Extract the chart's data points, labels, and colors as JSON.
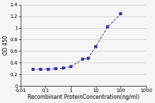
{
  "x": [
    0.03125,
    0.0625,
    0.125,
    0.25,
    0.5,
    1.0,
    3.0,
    5.0,
    10.0,
    30.0,
    100.0
  ],
  "y": [
    0.285,
    0.29,
    0.29,
    0.295,
    0.305,
    0.335,
    0.46,
    0.48,
    0.68,
    1.02,
    1.24
  ],
  "line_color": "#4444bb",
  "marker_color": "#3333aa",
  "marker": "s",
  "marker_size": 2.5,
  "line_width": 0.8,
  "xlabel": "Recombinant ProteinConcentration(ng/ml)",
  "ylabel": "OD 450",
  "xlim_log": [
    0.01,
    1000
  ],
  "ylim": [
    0,
    1.4
  ],
  "yticks": [
    0,
    0.2,
    0.4,
    0.6,
    0.8,
    1.0,
    1.2,
    1.4
  ],
  "ytick_labels": [
    "0",
    "0.2",
    "0.4",
    "0.6",
    "0.8",
    "1",
    "1.2",
    "1.4"
  ],
  "xticks": [
    0.01,
    0.1,
    1,
    10,
    100,
    1000
  ],
  "xtick_labels": [
    "0.01",
    "0.1",
    "1",
    "10",
    "100",
    "1000"
  ],
  "axis_fontsize": 5.5,
  "tick_fontsize": 5,
  "background_color": "#f5f5f5",
  "grid_color": "#cccccc"
}
